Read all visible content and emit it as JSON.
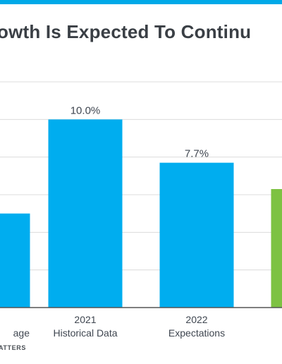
{
  "title": "owth Is Expected To Continu",
  "footer": "ATTERS",
  "colors": {
    "accent": "#00A9E8",
    "bar_blue": "#00ADEF",
    "bar_green": "#7DC242",
    "top_bar": "#00A9E8"
  },
  "chart_data": {
    "type": "bar",
    "ylim": [
      0,
      12
    ],
    "grid": true,
    "categories": [
      {
        "line1": "",
        "line2": "age"
      },
      {
        "line1": "2021",
        "line2": "Historical Data"
      },
      {
        "line1": "2022",
        "line2": "Expectations"
      },
      {
        "line1": "",
        "line2": ""
      }
    ],
    "values": [
      5.0,
      10.0,
      7.7,
      6.3
    ],
    "labels": [
      "",
      "10.0%",
      "7.7%",
      ""
    ],
    "bar_colors": [
      "#00ADEF",
      "#00ADEF",
      "#00ADEF",
      "#7DC242"
    ]
  }
}
